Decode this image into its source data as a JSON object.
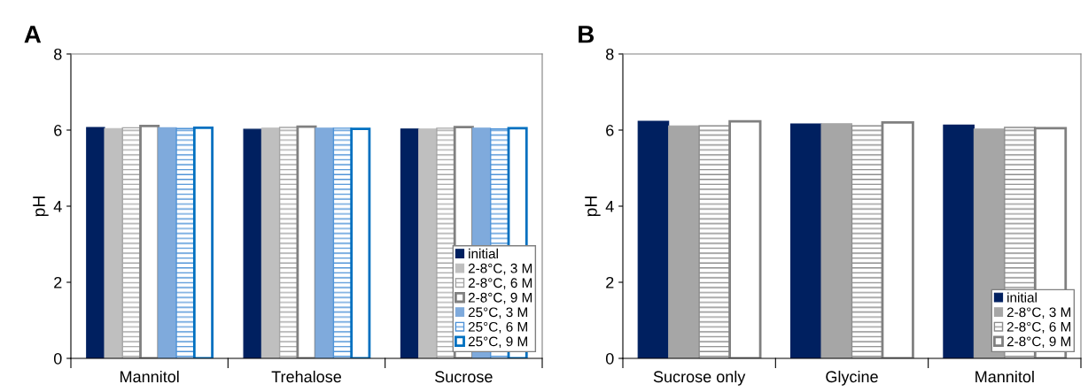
{
  "chart_data": [
    {
      "type": "bar",
      "title": "A",
      "ylabel": "pH",
      "categories": [
        "Mannitol",
        "Trehalose",
        "Sucrose"
      ],
      "ylim": [
        0,
        8
      ],
      "yticks": [
        0,
        2,
        4,
        6,
        8
      ],
      "grid": false,
      "legend": "bottom right",
      "series": [
        {
          "name": "initial",
          "color": "#002060",
          "values": [
            6.07,
            6.02,
            6.03
          ]
        },
        {
          "name": "2-8°C, 3 M",
          "color": "#bfbfbf",
          "values": [
            6.04,
            6.05,
            6.03
          ]
        },
        {
          "name": "2-8°C, 6 M",
          "color": "#a6a6a6",
          "values": [
            6.06,
            6.07,
            6.05
          ]
        },
        {
          "name": "2-8°C, 9 M",
          "color": "#808080",
          "values": [
            6.11,
            6.09,
            6.08
          ]
        },
        {
          "name": "25°C, 3 M",
          "color": "#7faadc",
          "values": [
            6.06,
            6.05,
            6.05
          ]
        },
        {
          "name": "25°C, 6 M",
          "color": "#4f93d8",
          "values": [
            6.04,
            6.05,
            6.03
          ]
        },
        {
          "name": "25°C, 9 M",
          "color": "#0070c0",
          "values": [
            6.06,
            6.03,
            6.05
          ]
        }
      ]
    },
    {
      "type": "bar",
      "title": "B",
      "ylabel": "pH",
      "categories": [
        "Sucrose only",
        "Glycine",
        "Mannitol"
      ],
      "ylim": [
        0,
        8
      ],
      "yticks": [
        0,
        2,
        4,
        6,
        8
      ],
      "grid": false,
      "legend": "bottom right",
      "series": [
        {
          "name": "initial",
          "color": "#002060",
          "values": [
            6.23,
            6.16,
            6.13
          ]
        },
        {
          "name": "2-8°C, 3 M",
          "color": "#a6a6a6",
          "values": [
            6.11,
            6.17,
            6.03
          ]
        },
        {
          "name": "2-8°C, 6 M",
          "color": "#8c8c8c",
          "values": [
            6.11,
            6.11,
            6.07
          ]
        },
        {
          "name": "2-8°C, 9 M",
          "color": "#808080",
          "values": [
            6.23,
            6.2,
            6.05
          ]
        }
      ]
    }
  ]
}
